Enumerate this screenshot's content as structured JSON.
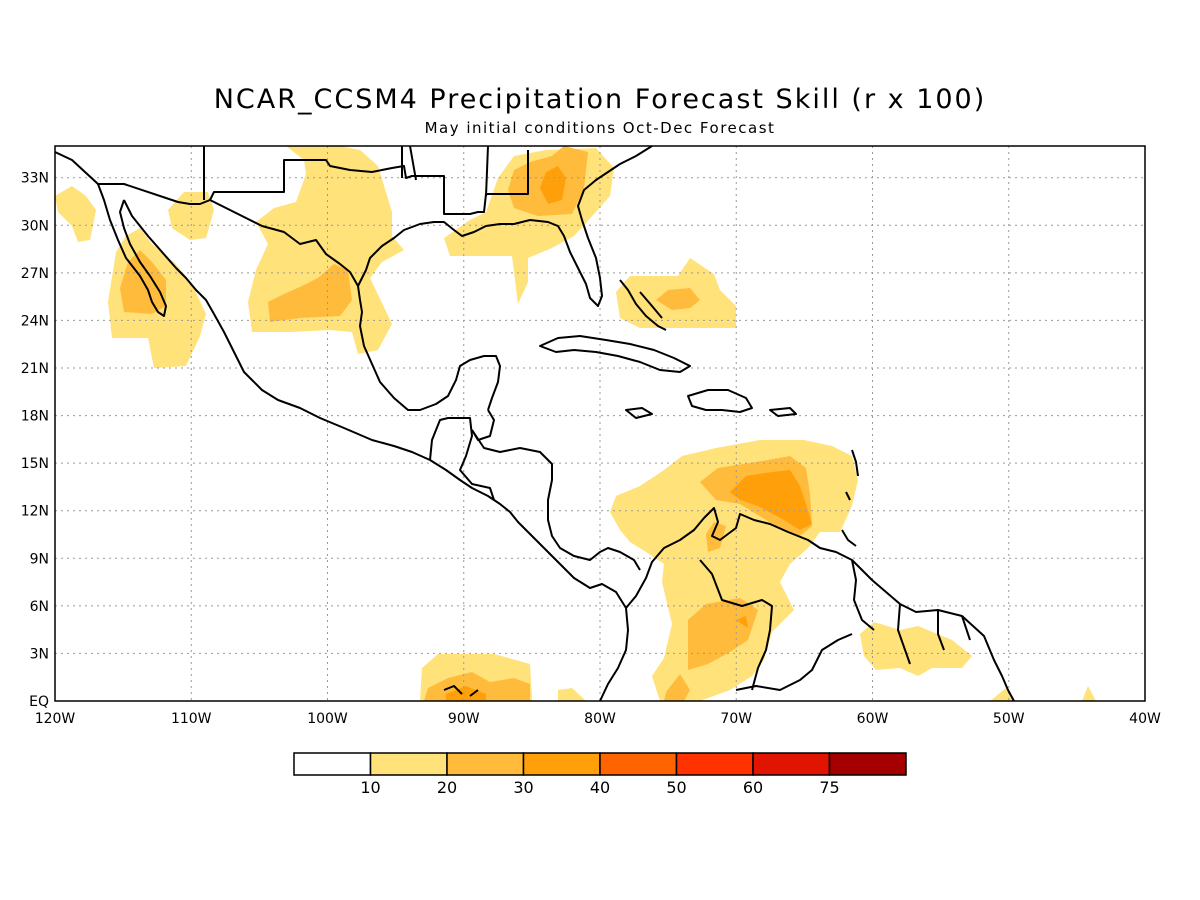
{
  "title": "NCAR_CCSM4 Precipitation Forecast Skill (r x 100)",
  "subtitle": "May initial conditions  Oct-Dec Forecast",
  "map": {
    "lon_range": [
      -120,
      -40
    ],
    "lat_range": [
      0,
      35
    ],
    "grid": "dotted",
    "lon_tick_labels": [
      "120W",
      "110W",
      "100W",
      "90W",
      "80W",
      "70W",
      "60W",
      "50W",
      "40W"
    ],
    "lat_tick_labels": [
      "EQ",
      "3N",
      "6N",
      "9N",
      "12N",
      "15N",
      "18N",
      "21N",
      "24N",
      "27N",
      "30N",
      "33N"
    ]
  },
  "colorbar": {
    "colors": [
      "#ffffff",
      "#ffe27a",
      "#ffbb3c",
      "#ffa00a",
      "#ff6400",
      "#ff3200",
      "#e11400",
      "#a50000"
    ],
    "labels": [
      "10",
      "20",
      "30",
      "40",
      "50",
      "60",
      "75"
    ]
  },
  "colors": {
    "level_10_20": "#ffe27a",
    "level_20_30": "#ffbb3c",
    "level_30_40": "#ffa00a",
    "coast": "#000000"
  }
}
